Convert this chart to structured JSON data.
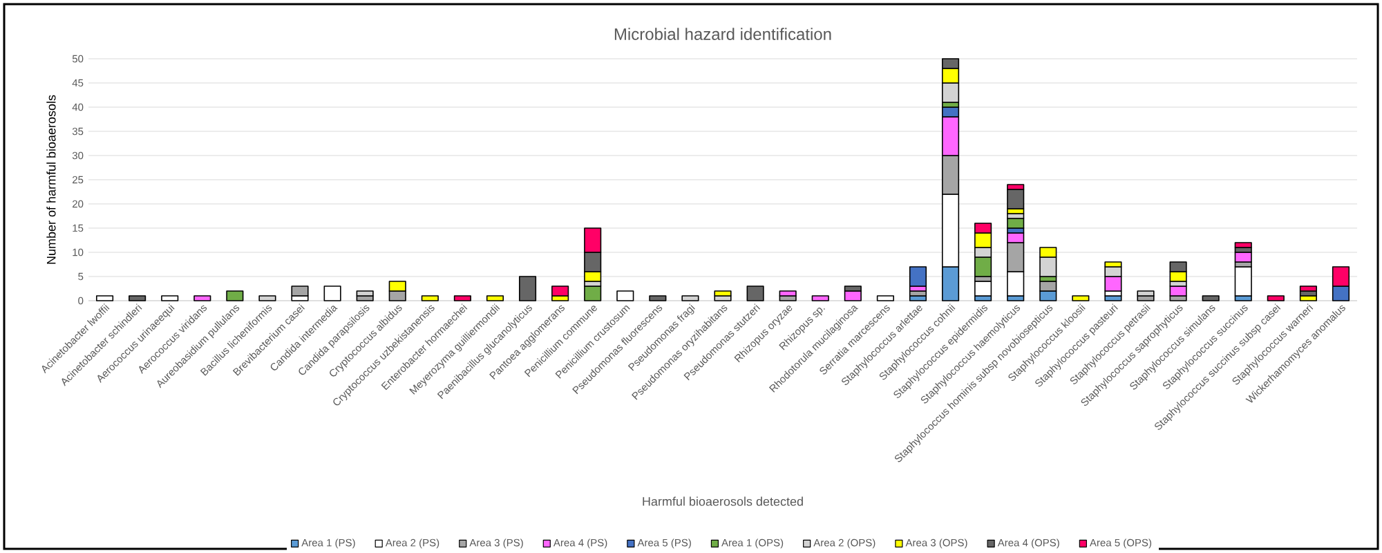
{
  "chart_data": {
    "type": "bar",
    "title": "Microbial hazard identification",
    "xlabel": "Harmful bioaerosols detected",
    "ylabel": "Number of harmful bioaerosols",
    "categories": [
      "Acinetobacter lwoffii",
      "Acinetobacter schindleri",
      "Aerococcus urinaeequi",
      "Aerococcus viridans",
      "Aureobasidium pullulans",
      "Bacillus licheniformis",
      "Brevibacterium casei",
      "Candida intermedia",
      "Candida parapsilosis",
      "Cryptococcus albidus",
      "Cryptococcus uzbekistanensis",
      "Enterobacter hormaechei",
      "Meyerozyma guilliermondii",
      "Paenibacillus glucanolyticus",
      "Pantoea agglomerans",
      "Penicillium commune",
      "Penicillium crustosum",
      "Pseudomonas fluorescens",
      "Pseudomonas fragi",
      "Pseudomonas oryzihabitans",
      "Pseudomonas stutzeri",
      "Rhizopus oryzae",
      "Rhizopus sp.",
      "Rhodotorula mucilaginosa",
      "Serratia marcescens",
      "Staphylococcus arlettae",
      "Staphylococcus cohnii",
      "Staphylococcus epidermidis",
      "Staphylococcus haemolyticus",
      "Staphylococcus hominis subsp novobiosepticus",
      "Staphylococcus kloosii",
      "Staphylococcus pasteuri",
      "Staphylococcus petrasii",
      "Staphylococcus saprophyticus",
      "Staphylococcus simulans",
      "Staphylococcus succinus",
      "Staphylococcus succinus subsp casei",
      "Staphylococcus warneri",
      "Wickerhamomyces anomalus"
    ],
    "series": [
      {
        "name": "Area 1 (PS)",
        "color": "#5b9bd5",
        "values": [
          null,
          null,
          null,
          null,
          null,
          null,
          null,
          null,
          null,
          null,
          null,
          null,
          null,
          null,
          null,
          null,
          null,
          null,
          null,
          null,
          null,
          null,
          null,
          null,
          null,
          1,
          7,
          1,
          1,
          2,
          null,
          1,
          null,
          null,
          null,
          1,
          null,
          null,
          null
        ]
      },
      {
        "name": "Area 2 (PS)",
        "color": "#ffffff",
        "values": [
          1,
          null,
          1,
          null,
          null,
          null,
          1,
          3,
          null,
          null,
          null,
          null,
          null,
          null,
          null,
          null,
          2,
          null,
          null,
          null,
          null,
          null,
          null,
          null,
          1,
          null,
          15,
          3,
          5,
          null,
          null,
          1,
          null,
          null,
          null,
          6,
          null,
          null,
          null
        ]
      },
      {
        "name": "Area 3 (PS)",
        "color": "#a5a5a5",
        "values": [
          null,
          null,
          null,
          null,
          null,
          null,
          2,
          null,
          1,
          2,
          null,
          null,
          null,
          null,
          null,
          null,
          null,
          null,
          null,
          null,
          null,
          1,
          null,
          null,
          null,
          1,
          8,
          1,
          6,
          2,
          null,
          null,
          1,
          1,
          null,
          1,
          null,
          null,
          null
        ]
      },
      {
        "name": "Area 4 (PS)",
        "color": "#ff66ff",
        "values": [
          null,
          null,
          null,
          1,
          null,
          null,
          null,
          null,
          null,
          null,
          null,
          null,
          null,
          null,
          null,
          null,
          null,
          null,
          null,
          null,
          null,
          1,
          1,
          2,
          null,
          1,
          8,
          null,
          2,
          null,
          null,
          3,
          null,
          2,
          null,
          2,
          null,
          null,
          null
        ]
      },
      {
        "name": "Area 5 (PS)",
        "color": "#4472c4",
        "values": [
          null,
          null,
          null,
          null,
          null,
          null,
          null,
          null,
          null,
          null,
          null,
          null,
          null,
          null,
          null,
          null,
          null,
          null,
          null,
          null,
          null,
          null,
          null,
          null,
          null,
          4,
          2,
          null,
          1,
          null,
          null,
          null,
          null,
          null,
          null,
          null,
          null,
          null,
          3
        ]
      },
      {
        "name": "Area 1 (OPS)",
        "color": "#70ad47",
        "values": [
          null,
          null,
          null,
          null,
          2,
          null,
          null,
          null,
          null,
          null,
          null,
          null,
          null,
          null,
          null,
          3,
          null,
          null,
          null,
          null,
          null,
          null,
          null,
          null,
          null,
          null,
          1,
          4,
          2,
          1,
          null,
          null,
          null,
          null,
          null,
          null,
          null,
          null,
          null
        ]
      },
      {
        "name": "Area 2 (OPS)",
        "color": "#d3d3d3",
        "values": [
          null,
          null,
          null,
          null,
          null,
          1,
          null,
          null,
          1,
          null,
          null,
          null,
          null,
          null,
          null,
          1,
          null,
          null,
          1,
          1,
          null,
          null,
          null,
          null,
          null,
          null,
          4,
          2,
          1,
          4,
          null,
          2,
          1,
          1,
          null,
          null,
          null,
          null,
          null
        ]
      },
      {
        "name": "Area 3 (OPS)",
        "color": "#ffff00",
        "values": [
          null,
          null,
          null,
          null,
          null,
          null,
          null,
          null,
          null,
          2,
          1,
          null,
          1,
          null,
          1,
          2,
          null,
          null,
          null,
          1,
          null,
          null,
          null,
          null,
          null,
          null,
          3,
          3,
          1,
          2,
          1,
          1,
          null,
          2,
          null,
          null,
          null,
          1,
          null
        ]
      },
      {
        "name": "Area 4 (OPS)",
        "color": "#666666",
        "values": [
          null,
          1,
          null,
          null,
          null,
          null,
          null,
          null,
          null,
          null,
          null,
          null,
          null,
          5,
          null,
          4,
          null,
          1,
          null,
          null,
          3,
          null,
          null,
          1,
          null,
          null,
          2,
          null,
          4,
          null,
          null,
          null,
          null,
          2,
          1,
          1,
          null,
          1,
          null
        ]
      },
      {
        "name": "Area 5 (OPS)",
        "color": "#ff0066",
        "values": [
          null,
          null,
          null,
          null,
          null,
          null,
          null,
          null,
          null,
          null,
          null,
          1,
          null,
          null,
          2,
          5,
          null,
          null,
          null,
          null,
          null,
          null,
          null,
          null,
          null,
          null,
          null,
          2,
          1,
          null,
          null,
          null,
          null,
          null,
          null,
          1,
          1,
          1,
          4
        ]
      }
    ],
    "stacked": true,
    "ylim": [
      0,
      50
    ],
    "yticks": [
      0,
      5,
      10,
      15,
      20,
      25,
      30,
      35,
      40,
      45,
      50
    ],
    "grid": "y",
    "legend": "bottom"
  }
}
